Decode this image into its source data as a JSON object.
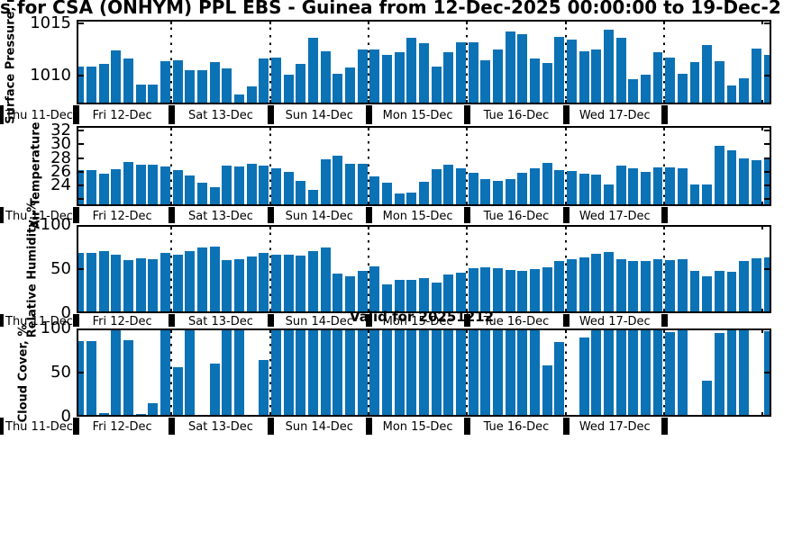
{
  "chart_data": {
    "type": "bar",
    "title": "s for CSA (ONHYM) PPL EBS  - Guinea from 12-Dec-2025 00:00:00 to 19-Dec-2",
    "valid_note": "Valid for 20251212",
    "bar_color": "#0b72b5",
    "x_day_labels": [
      "Thu 11-Dec",
      "Fri 12-Dec",
      "Sat 13-Dec",
      "Sun 14-Dec",
      "Mon 15-Dec",
      "Tue 16-Dec",
      "Wed 17-Dec"
    ],
    "bars_per_day": 8,
    "x_note": "3-hourly bars, days separated by dotted lines",
    "panels": [
      {
        "ylabel": "Surface Pressure, mb",
        "ylim": [
          1007.3,
          1015.3
        ],
        "yticks": [
          {
            "v": 1015,
            "label": "1015"
          },
          {
            "v": 1010,
            "label": "1010"
          }
        ],
        "values": [
          1010.9,
          1010.9,
          1011.1,
          1012.4,
          1011.6,
          1009.2,
          1009.2,
          1011.4,
          1011.5,
          1010.5,
          1010.5,
          1011.3,
          1010.7,
          1008.2,
          1009.0,
          1011.6,
          1011.7,
          1010.1,
          1011.1,
          1013.6,
          1012.3,
          1010.2,
          1010.8,
          1012.5,
          1012.5,
          1012.0,
          1012.2,
          1013.6,
          1013.1,
          1010.9,
          1012.2,
          1013.2,
          1013.2,
          1011.5,
          1012.5,
          1014.2,
          1013.9,
          1011.6,
          1011.2,
          1013.7,
          1013.4,
          1012.3,
          1012.5,
          1014.4,
          1013.6,
          1009.7,
          1010.1,
          1012.2,
          1011.7,
          1010.2,
          1011.3,
          1012.9,
          1011.4,
          1009.1,
          1009.8,
          1012.6,
          1012.0
        ]
      },
      {
        "ylabel": "Air Temperature",
        "ylim": [
          21.0,
          32.65
        ],
        "yticks": [
          {
            "v": 32,
            "label": "32"
          },
          {
            "v": 30,
            "label": "30"
          },
          {
            "v": 28,
            "label": "28"
          },
          {
            "v": 26,
            "label": "26"
          },
          {
            "v": 24,
            "label": "24"
          },
          {
            "v": 22,
            "label": ""
          }
        ],
        "values": [
          26.3,
          26.3,
          25.7,
          26.4,
          27.4,
          27.0,
          27.0,
          26.7,
          26.2,
          25.4,
          24.4,
          23.7,
          26.9,
          26.7,
          27.1,
          26.9,
          26.5,
          26.0,
          24.7,
          23.3,
          27.8,
          28.3,
          27.1,
          27.1,
          25.3,
          24.4,
          22.9,
          23.0,
          24.6,
          26.4,
          27.0,
          26.5,
          25.9,
          24.9,
          24.7,
          24.9,
          25.9,
          26.5,
          27.3,
          26.2,
          26.1,
          25.7,
          25.6,
          24.2,
          26.9,
          26.5,
          26.0,
          26.6,
          26.6,
          26.5,
          24.2,
          24.1,
          29.8,
          29.1,
          28.0,
          27.7,
          27.9
        ]
      },
      {
        "ylabel": "Relative Humidity, %",
        "ylim": [
          0,
          100
        ],
        "yticks": [
          {
            "v": 100,
            "label": "100"
          },
          {
            "v": 50,
            "label": "50"
          },
          {
            "v": 0,
            "label": "0"
          }
        ],
        "values": [
          68,
          68,
          70,
          66,
          60,
          62,
          61,
          68,
          66,
          70,
          74,
          76,
          60,
          61,
          64,
          68,
          66,
          66,
          65,
          70,
          74,
          45,
          42,
          48,
          53,
          33,
          38,
          38,
          40,
          35,
          44,
          46,
          51,
          52,
          51,
          49,
          48,
          50,
          52,
          59,
          61,
          63,
          67,
          69,
          61,
          59,
          59,
          61,
          60,
          61,
          48,
          42,
          48,
          47,
          59,
          62,
          63
        ]
      },
      {
        "ylabel": "Cloud Cover, %",
        "ylim": [
          0,
          100
        ],
        "yticks": [
          {
            "v": 100,
            "label": "100"
          },
          {
            "v": 50,
            "label": "50"
          },
          {
            "v": 0,
            "label": "0"
          }
        ],
        "values": [
          86,
          86,
          4,
          100,
          87,
          3,
          15,
          100,
          56,
          100,
          0,
          60,
          100,
          100,
          0,
          64,
          100,
          100,
          100,
          100,
          100,
          100,
          100,
          100,
          100,
          100,
          100,
          100,
          100,
          100,
          100,
          100,
          100,
          100,
          100,
          100,
          100,
          100,
          58,
          85,
          0,
          90,
          100,
          100,
          100,
          100,
          100,
          100,
          96,
          100,
          0,
          41,
          95,
          100,
          100,
          0,
          97
        ]
      }
    ]
  }
}
